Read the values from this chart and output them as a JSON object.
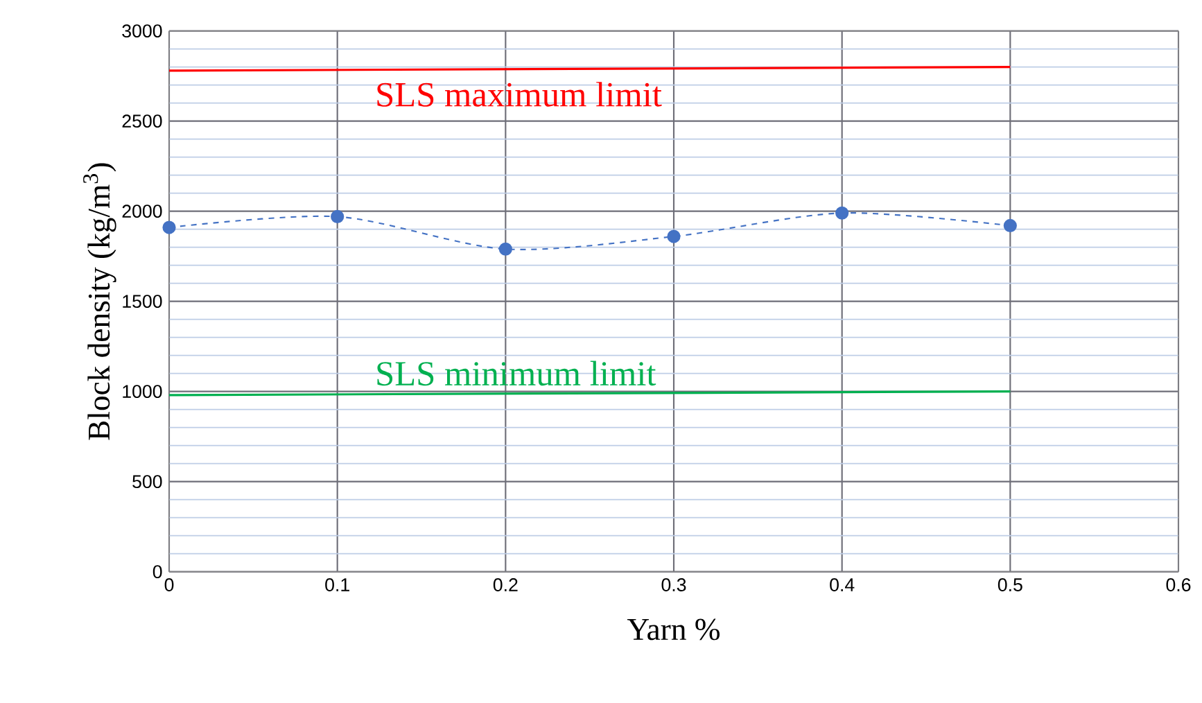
{
  "chart_data": {
    "type": "line",
    "xlabel": "Yarn %",
    "ylabel": "Block density (kg/m$^{3}$)",
    "xlim": [
      0,
      0.6
    ],
    "ylim": [
      0,
      3000
    ],
    "xticks": [
      0,
      0.1,
      0.2,
      0.3,
      0.4,
      0.5,
      0.6
    ],
    "yticks": [
      0,
      500,
      1000,
      1500,
      2000,
      2500,
      3000
    ],
    "grid": true,
    "marker": "circle",
    "line_style": "dashed",
    "series": [
      {
        "x": [
          0,
          0.1,
          0.2,
          0.3,
          0.4,
          0.5
        ],
        "values": [
          1910,
          1970,
          1790,
          1860,
          1990,
          1920
        ],
        "color": "#4472c4"
      },
      {
        "name": "SLS maximum limit",
        "x": [
          0,
          0.5
        ],
        "values": [
          2780,
          2800
        ],
        "color": "#ff0000",
        "marker": "none",
        "line_style": "solid"
      },
      {
        "name": "SLS minimum limit",
        "x": [
          0,
          0.5
        ],
        "values": [
          980,
          1000
        ],
        "color": "#00b050",
        "marker": "none",
        "line_style": "solid"
      }
    ]
  }
}
